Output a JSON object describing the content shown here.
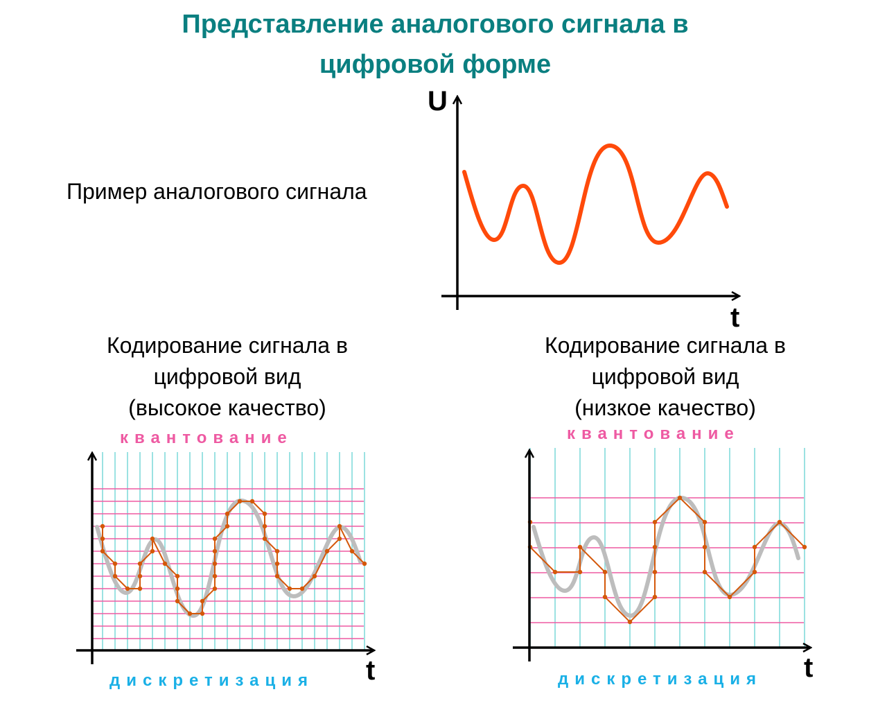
{
  "title": {
    "line1": "Представление аналогового сигнала в",
    "line2": "цифровой форме"
  },
  "analog": {
    "label": "Пример аналогового сигнала",
    "y_axis_label": "U",
    "x_axis_label": "t"
  },
  "high_quality": {
    "caption_line1": "Кодирование сигнала в",
    "caption_line2": "цифровой вид",
    "caption_line3": "(высокое качество)",
    "quantization_label": "квантование",
    "sampling_label": "дискретизация",
    "x_axis_label": "t"
  },
  "low_quality": {
    "caption_line1": "Кодирование сигнала в",
    "caption_line2": "цифровой вид",
    "caption_line3": "(низкое качество)",
    "quantization_label": "квантование",
    "sampling_label": "дискретизация",
    "x_axis_label": "t"
  },
  "colors": {
    "title": "#0a7f80",
    "signal": "#ff4a0a",
    "analog_ghost": "#bdbdbd",
    "digital_line": "#d4580a",
    "quant_grid": "#ee5aa2",
    "sample_grid": "#7ad9d9",
    "quantization_text": "#ee5aa2",
    "sampling_text": "#1ab0e6"
  }
}
